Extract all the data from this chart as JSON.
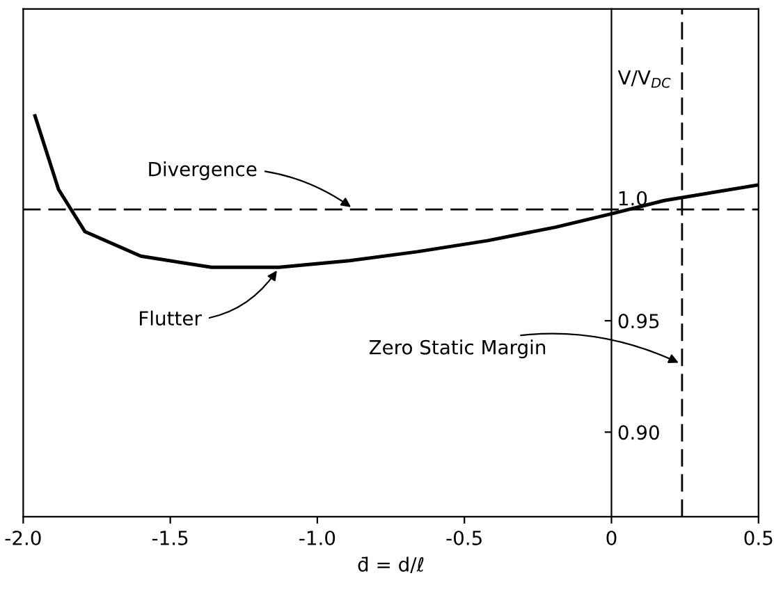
{
  "chart_data": {
    "type": "line",
    "xlabel": "d̄ = d/ℓ",
    "ylabel": "V/V$_{DC}$",
    "x": [
      -1.96,
      -1.88,
      -1.79,
      -1.6,
      -1.36,
      -1.13,
      -0.89,
      -0.66,
      -0.42,
      -0.19,
      0,
      0.18,
      0.5
    ],
    "series": [
      {
        "name": "Flutter",
        "color": "#000000",
        "values": [
          1.042,
          1.009,
          0.99,
          0.979,
          0.974,
          0.974,
          0.977,
          0.981,
          0.986,
          0.992,
          0.998,
          1.004,
          1.011
        ]
      }
    ],
    "xlim": [
      -2.0,
      0.5
    ],
    "ylim": [
      0.862,
      1.09
    ],
    "xticks": [
      {
        "value": -2.0,
        "label": "-2.0"
      },
      -1.5,
      {
        "value": -1.0,
        "label": "-1.0"
      },
      -0.5,
      0,
      0.5
    ],
    "yticks": [
      {
        "value": 0.9,
        "label": "0.90"
      },
      0.95,
      {
        "value": 1.0,
        "label": "1.0"
      }
    ],
    "ref_lines": [
      {
        "axis": "y",
        "value": 1.0,
        "label": "Divergence",
        "color": "#000000",
        "line_style": "dashed"
      },
      {
        "axis": "x",
        "value": 0.24,
        "label": "Zero Static Margin",
        "color": "#000000",
        "line_style": "dashed"
      }
    ],
    "grid": false,
    "legend": false,
    "marker": "none",
    "line_style": "solid"
  }
}
